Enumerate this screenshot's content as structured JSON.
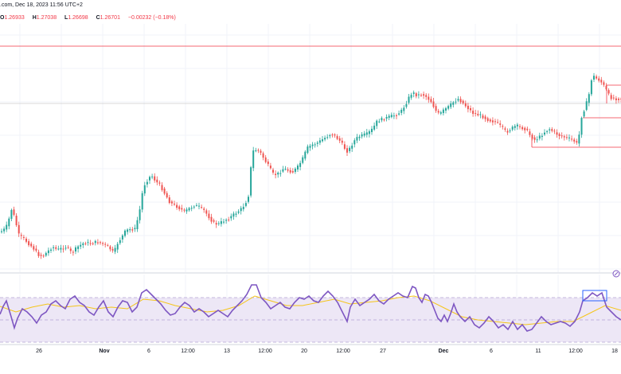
{
  "header": {
    "source": ".com, Dec 18, 2023 11:56 UTC+2",
    "ohlc": [
      {
        "label": "O",
        "value": "1.26933"
      },
      {
        "label": "H",
        "value": "1.27038"
      },
      {
        "label": "L",
        "value": "1.26698"
      },
      {
        "label": "C",
        "value": "1.26701"
      },
      {
        "label": "",
        "value": "−0.00232 (−0.18%)"
      }
    ]
  },
  "colors": {
    "up": "#26a69a",
    "down": "#ef5350",
    "rsi": "#7e57c2",
    "rsi_ma": "#f5c518",
    "rsi_band": "#ede7f6",
    "line": "#f23645"
  },
  "chart_data": [
    {
      "type": "candlestick",
      "title": "",
      "x_ticks": [
        "26",
        "Nov",
        "6",
        "12:00",
        "13",
        "12:00",
        "20",
        "12:00",
        "27",
        "Dec",
        "6",
        "11",
        "12:00",
        "18"
      ],
      "x_ticks_bold": [
        "Nov",
        "Dec"
      ],
      "path": [
        [
          0,
          292
        ],
        [
          6,
          290
        ],
        [
          12,
          282
        ],
        [
          16,
          262
        ],
        [
          20,
          272
        ],
        [
          26,
          296
        ],
        [
          32,
          300
        ],
        [
          38,
          306
        ],
        [
          44,
          312
        ],
        [
          50,
          320
        ],
        [
          56,
          322
        ],
        [
          62,
          316
        ],
        [
          68,
          310
        ],
        [
          74,
          314
        ],
        [
          80,
          312
        ],
        [
          86,
          310
        ],
        [
          92,
          318
        ],
        [
          100,
          310
        ],
        [
          108,
          305
        ],
        [
          116,
          306
        ],
        [
          124,
          304
        ],
        [
          130,
          306
        ],
        [
          138,
          310
        ],
        [
          145,
          318
        ],
        [
          150,
          305
        ],
        [
          155,
          298
        ],
        [
          160,
          290
        ],
        [
          166,
          288
        ],
        [
          172,
          288
        ],
        [
          178,
          262
        ],
        [
          182,
          235
        ],
        [
          186,
          228
        ],
        [
          192,
          220
        ],
        [
          198,
          228
        ],
        [
          204,
          234
        ],
        [
          210,
          245
        ],
        [
          216,
          255
        ],
        [
          222,
          258
        ],
        [
          228,
          262
        ],
        [
          234,
          266
        ],
        [
          240,
          262
        ],
        [
          246,
          258
        ],
        [
          252,
          260
        ],
        [
          258,
          264
        ],
        [
          264,
          272
        ],
        [
          270,
          280
        ],
        [
          276,
          282
        ],
        [
          282,
          278
        ],
        [
          290,
          274
        ],
        [
          298,
          268
        ],
        [
          306,
          262
        ],
        [
          312,
          252
        ],
        [
          316,
          240
        ],
        [
          318,
          192
        ],
        [
          322,
          188
        ],
        [
          328,
          190
        ],
        [
          334,
          200
        ],
        [
          340,
          210
        ],
        [
          346,
          220
        ],
        [
          352,
          218
        ],
        [
          358,
          212
        ],
        [
          364,
          214
        ],
        [
          370,
          216
        ],
        [
          376,
          210
        ],
        [
          382,
          200
        ],
        [
          388,
          186
        ],
        [
          394,
          182
        ],
        [
          400,
          180
        ],
        [
          406,
          176
        ],
        [
          412,
          172
        ],
        [
          418,
          168
        ],
        [
          424,
          172
        ],
        [
          430,
          178
        ],
        [
          434,
          185
        ],
        [
          438,
          190
        ],
        [
          442,
          186
        ],
        [
          446,
          178
        ],
        [
          452,
          172
        ],
        [
          458,
          170
        ],
        [
          464,
          168
        ],
        [
          470,
          162
        ],
        [
          476,
          152
        ],
        [
          482,
          150
        ],
        [
          488,
          148
        ],
        [
          494,
          146
        ],
        [
          500,
          144
        ],
        [
          506,
          140
        ],
        [
          512,
          130
        ],
        [
          516,
          122
        ],
        [
          520,
          116
        ],
        [
          526,
          120
        ],
        [
          532,
          118
        ],
        [
          538,
          122
        ],
        [
          544,
          128
        ],
        [
          550,
          140
        ],
        [
          554,
          144
        ],
        [
          560,
          138
        ],
        [
          566,
          134
        ],
        [
          572,
          128
        ],
        [
          578,
          124
        ],
        [
          584,
          130
        ],
        [
          590,
          136
        ],
        [
          596,
          142
        ],
        [
          602,
          144
        ],
        [
          608,
          146
        ],
        [
          614,
          150
        ],
        [
          620,
          152
        ],
        [
          626,
          154
        ],
        [
          632,
          160
        ],
        [
          638,
          166
        ],
        [
          644,
          162
        ],
        [
          650,
          158
        ],
        [
          656,
          160
        ],
        [
          662,
          162
        ],
        [
          668,
          170
        ],
        [
          674,
          176
        ],
        [
          680,
          172
        ],
        [
          686,
          166
        ],
        [
          692,
          162
        ],
        [
          698,
          166
        ],
        [
          704,
          170
        ],
        [
          710,
          172
        ],
        [
          716,
          174
        ],
        [
          722,
          176
        ],
        [
          728,
          182
        ],
        [
          732,
          148
        ],
        [
          738,
          132
        ],
        [
          742,
          118
        ],
        [
          746,
          94
        ],
        [
          750,
          98
        ],
        [
          754,
          100
        ],
        [
          758,
          104
        ],
        [
          762,
          110
        ],
        [
          768,
          122
        ],
        [
          774,
          124
        ],
        [
          780,
          124
        ]
      ],
      "hlines": [
        {
          "from": 0,
          "to": 780,
          "y": 58,
          "color": "#f23645",
          "w": 0.8
        },
        {
          "from": 0,
          "to": 780,
          "y": 130,
          "color": "#cccccc",
          "w": 0.8
        },
        {
          "from": 732,
          "to": 780,
          "y": 148,
          "color": "#f23645",
          "w": 0.8
        },
        {
          "from": 668,
          "to": 780,
          "y": 185,
          "color": "#f23645",
          "w": 0.8
        },
        {
          "from": 762,
          "to": 780,
          "y": 107,
          "color": "#f23645",
          "w": 0.8
        }
      ],
      "vlines": [
        {
          "x": 668,
          "y1": 170,
          "y2": 185
        },
        {
          "x": 762,
          "y1": 107,
          "y2": 130
        }
      ]
    },
    {
      "type": "line",
      "title": "",
      "series_path": [
        [
          0,
          395
        ],
        [
          4,
          385
        ],
        [
          8,
          378
        ],
        [
          14,
          398
        ],
        [
          18,
          412
        ],
        [
          22,
          400
        ],
        [
          28,
          388
        ],
        [
          34,
          392
        ],
        [
          40,
          398
        ],
        [
          46,
          406
        ],
        [
          52,
          396
        ],
        [
          58,
          392
        ],
        [
          64,
          382
        ],
        [
          70,
          378
        ],
        [
          76,
          384
        ],
        [
          82,
          388
        ],
        [
          88,
          376
        ],
        [
          94,
          372
        ],
        [
          100,
          380
        ],
        [
          106,
          384
        ],
        [
          112,
          392
        ],
        [
          118,
          396
        ],
        [
          124,
          386
        ],
        [
          130,
          378
        ],
        [
          136,
          392
        ],
        [
          142,
          398
        ],
        [
          148,
          386
        ],
        [
          154,
          378
        ],
        [
          160,
          380
        ],
        [
          166,
          392
        ],
        [
          172,
          386
        ],
        [
          178,
          368
        ],
        [
          184,
          364
        ],
        [
          190,
          370
        ],
        [
          196,
          376
        ],
        [
          202,
          382
        ],
        [
          208,
          390
        ],
        [
          214,
          396
        ],
        [
          220,
          394
        ],
        [
          226,
          386
        ],
        [
          232,
          380
        ],
        [
          238,
          384
        ],
        [
          244,
          392
        ],
        [
          250,
          388
        ],
        [
          256,
          392
        ],
        [
          262,
          398
        ],
        [
          268,
          394
        ],
        [
          274,
          390
        ],
        [
          280,
          394
        ],
        [
          286,
          398
        ],
        [
          292,
          390
        ],
        [
          298,
          384
        ],
        [
          304,
          378
        ],
        [
          310,
          370
        ],
        [
          316,
          358
        ],
        [
          322,
          358
        ],
        [
          328,
          374
        ],
        [
          334,
          380
        ],
        [
          340,
          388
        ],
        [
          346,
          384
        ],
        [
          352,
          380
        ],
        [
          358,
          386
        ],
        [
          364,
          388
        ],
        [
          370,
          380
        ],
        [
          376,
          374
        ],
        [
          382,
          376
        ],
        [
          388,
          372
        ],
        [
          394,
          378
        ],
        [
          400,
          380
        ],
        [
          406,
          372
        ],
        [
          412,
          366
        ],
        [
          418,
          372
        ],
        [
          424,
          380
        ],
        [
          430,
          392
        ],
        [
          436,
          404
        ],
        [
          440,
          386
        ],
        [
          446,
          376
        ],
        [
          452,
          384
        ],
        [
          458,
          380
        ],
        [
          464,
          376
        ],
        [
          470,
          370
        ],
        [
          476,
          378
        ],
        [
          482,
          382
        ],
        [
          488,
          376
        ],
        [
          494,
          372
        ],
        [
          500,
          368
        ],
        [
          506,
          372
        ],
        [
          512,
          374
        ],
        [
          518,
          360
        ],
        [
          522,
          362
        ],
        [
          526,
          374
        ],
        [
          530,
          380
        ],
        [
          534,
          370
        ],
        [
          538,
          372
        ],
        [
          542,
          380
        ],
        [
          546,
          390
        ],
        [
          550,
          400
        ],
        [
          554,
          404
        ],
        [
          558,
          396
        ],
        [
          562,
          404
        ],
        [
          566,
          394
        ],
        [
          570,
          382
        ],
        [
          574,
          392
        ],
        [
          578,
          398
        ],
        [
          584,
          404
        ],
        [
          590,
          398
        ],
        [
          596,
          408
        ],
        [
          602,
          412
        ],
        [
          608,
          406
        ],
        [
          614,
          398
        ],
        [
          620,
          404
        ],
        [
          626,
          412
        ],
        [
          632,
          408
        ],
        [
          638,
          414
        ],
        [
          644,
          404
        ],
        [
          650,
          414
        ],
        [
          656,
          408
        ],
        [
          662,
          416
        ],
        [
          668,
          414
        ],
        [
          674,
          406
        ],
        [
          680,
          398
        ],
        [
          686,
          404
        ],
        [
          692,
          408
        ],
        [
          698,
          406
        ],
        [
          704,
          404
        ],
        [
          710,
          406
        ],
        [
          716,
          410
        ],
        [
          722,
          404
        ],
        [
          728,
          392
        ],
        [
          732,
          378
        ],
        [
          738,
          374
        ],
        [
          744,
          368
        ],
        [
          750,
          372
        ],
        [
          756,
          368
        ],
        [
          762,
          386
        ],
        [
          768,
          392
        ],
        [
          774,
          398
        ],
        [
          780,
          402
        ]
      ],
      "ma_path": [
        [
          0,
          385
        ],
        [
          20,
          392
        ],
        [
          40,
          386
        ],
        [
          60,
          382
        ],
        [
          80,
          386
        ],
        [
          100,
          384
        ],
        [
          120,
          388
        ],
        [
          140,
          386
        ],
        [
          160,
          388
        ],
        [
          180,
          376
        ],
        [
          200,
          378
        ],
        [
          220,
          384
        ],
        [
          240,
          388
        ],
        [
          260,
          392
        ],
        [
          280,
          390
        ],
        [
          300,
          384
        ],
        [
          320,
          372
        ],
        [
          340,
          378
        ],
        [
          360,
          384
        ],
        [
          380,
          384
        ],
        [
          400,
          380
        ],
        [
          420,
          376
        ],
        [
          440,
          382
        ],
        [
          460,
          380
        ],
        [
          480,
          378
        ],
        [
          500,
          374
        ],
        [
          520,
          372
        ],
        [
          540,
          378
        ],
        [
          560,
          388
        ],
        [
          580,
          398
        ],
        [
          600,
          402
        ],
        [
          620,
          404
        ],
        [
          640,
          406
        ],
        [
          660,
          408
        ],
        [
          680,
          406
        ],
        [
          700,
          404
        ],
        [
          720,
          404
        ],
        [
          740,
          394
        ],
        [
          760,
          384
        ],
        [
          780,
          390
        ]
      ],
      "band": {
        "top": 374,
        "bottom": 430
      },
      "middle": 402,
      "marker": {
        "from": 732,
        "to": 762,
        "y1": 365,
        "y2": 378
      }
    }
  ]
}
